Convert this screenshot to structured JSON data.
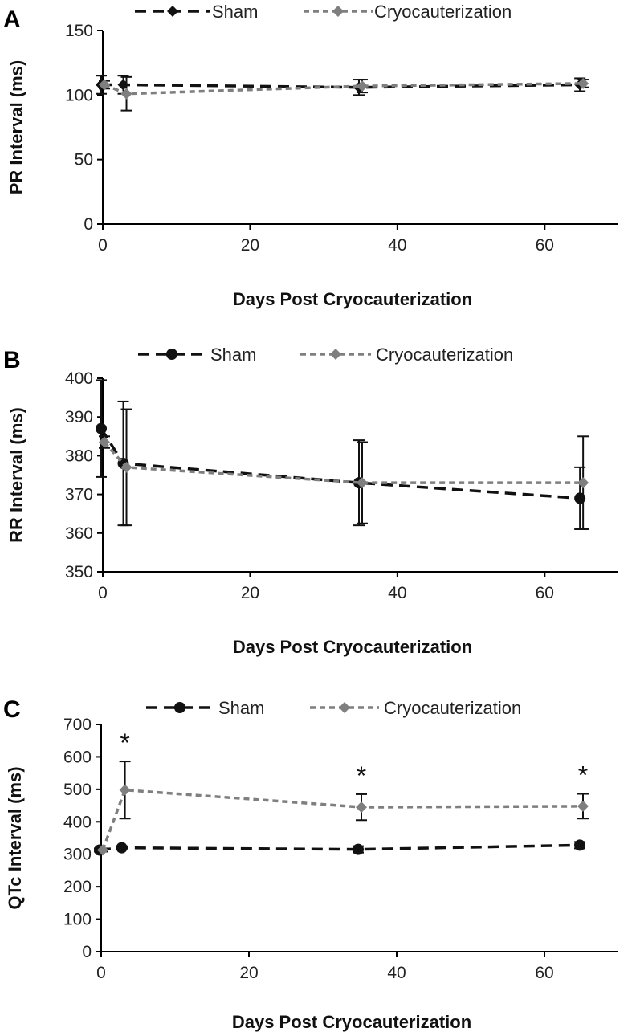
{
  "figure": {
    "panels": [
      "A",
      "B",
      "C"
    ],
    "legend": {
      "sham": "Sham",
      "cryo": "Cryocauterization"
    },
    "colors": {
      "sham": "#111111",
      "cryo": "#7f7f7f",
      "axis": "#000000"
    }
  },
  "chart_data": [
    {
      "panel": "A",
      "type": "line",
      "title": "",
      "xlabel": "Days Post Cryocauterization",
      "ylabel": "PR Interval (ms)",
      "xlim": [
        0,
        70
      ],
      "ylim": [
        0,
        150
      ],
      "xticks": [
        0,
        20,
        40,
        60
      ],
      "yticks": [
        0,
        50,
        100,
        150
      ],
      "legend_position": "top",
      "series": [
        {
          "name": "Sham",
          "marker": "diamond",
          "x": [
            0,
            3,
            35,
            65
          ],
          "y": [
            108,
            108,
            106,
            108
          ],
          "err": [
            7,
            7,
            6,
            5
          ]
        },
        {
          "name": "Cryocauterization",
          "marker": "diamond",
          "x": [
            0,
            3,
            35,
            65
          ],
          "y": [
            108,
            101,
            107,
            109
          ],
          "err": [
            3,
            13,
            5,
            3
          ]
        }
      ],
      "annotations": []
    },
    {
      "panel": "B",
      "type": "line",
      "title": "",
      "xlabel": "Days Post Cryocauterization",
      "ylabel": "RR Interval (ms)",
      "xlim": [
        0,
        70
      ],
      "ylim": [
        350,
        400
      ],
      "xticks": [
        0,
        20,
        40,
        60
      ],
      "yticks": [
        350,
        360,
        370,
        380,
        390,
        400
      ],
      "legend_position": "top",
      "series": [
        {
          "name": "Sham",
          "marker": "circle",
          "x": [
            0,
            3,
            35,
            65
          ],
          "y": [
            387,
            378,
            373,
            369
          ],
          "err": [
            12.5,
            16,
            11,
            8
          ]
        },
        {
          "name": "Cryocauterization",
          "marker": "diamond",
          "x": [
            0,
            3,
            35,
            65
          ],
          "y": [
            383.5,
            377,
            373,
            373
          ],
          "err": [
            1.5,
            15,
            10.5,
            12
          ]
        }
      ],
      "annotations": []
    },
    {
      "panel": "C",
      "type": "line",
      "title": "",
      "xlabel": "Days Post Cryocauterization",
      "ylabel": "QTc Interval (ms)",
      "xlim": [
        0,
        70
      ],
      "ylim": [
        0,
        700
      ],
      "xticks": [
        0,
        20,
        40,
        60
      ],
      "yticks": [
        0,
        100,
        200,
        300,
        400,
        500,
        600,
        700
      ],
      "legend_position": "top",
      "series": [
        {
          "name": "Sham",
          "marker": "circle",
          "x": [
            0,
            3,
            35,
            65
          ],
          "y": [
            313,
            320,
            315,
            328
          ],
          "err": [
            5,
            5,
            10,
            10
          ]
        },
        {
          "name": "Cryocauterization",
          "marker": "diamond",
          "x": [
            0,
            3,
            35,
            65
          ],
          "y": [
            313,
            498,
            445,
            448
          ],
          "err": [
            5,
            88,
            40,
            38
          ]
        }
      ],
      "annotations": [
        {
          "text": "*",
          "x": 3
        },
        {
          "text": "*",
          "x": 35
        },
        {
          "text": "*",
          "x": 65
        }
      ]
    }
  ]
}
